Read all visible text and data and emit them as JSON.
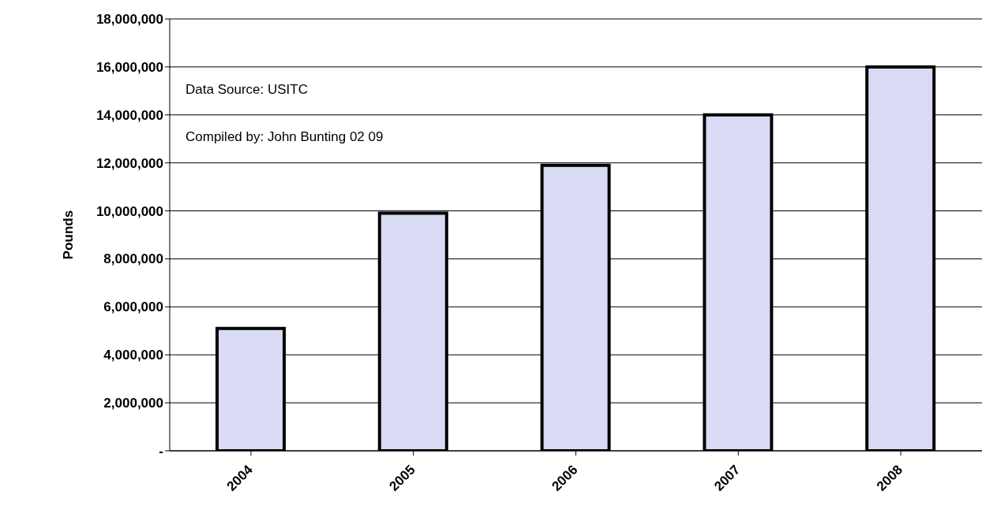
{
  "chart_data": {
    "type": "bar",
    "ylabel": "Pounds",
    "categories": [
      "2004",
      "2005",
      "2006",
      "2007",
      "2008"
    ],
    "values": [
      5100000,
      9900000,
      11900000,
      14000000,
      16000000
    ],
    "color": "#d9dbf5",
    "ylim": [
      0,
      18000000
    ],
    "yticks": [
      {
        "value": 0,
        "label": "-"
      },
      {
        "value": 2000000,
        "label": "2,000,000"
      },
      {
        "value": 4000000,
        "label": "4,000,000"
      },
      {
        "value": 6000000,
        "label": "6,000,000"
      },
      {
        "value": 8000000,
        "label": "8,000,000"
      },
      {
        "value": 10000000,
        "label": "10,000,000"
      },
      {
        "value": 12000000,
        "label": "12,000,000"
      },
      {
        "value": 14000000,
        "label": "14,000,000"
      },
      {
        "value": 16000000,
        "label": "16,000,000"
      },
      {
        "value": 18000000,
        "label": "18,000,000"
      }
    ],
    "grid": "y",
    "legend": false,
    "annotations": [
      "Data Source: USITC",
      "Compiled by: John Bunting 02 09"
    ]
  }
}
